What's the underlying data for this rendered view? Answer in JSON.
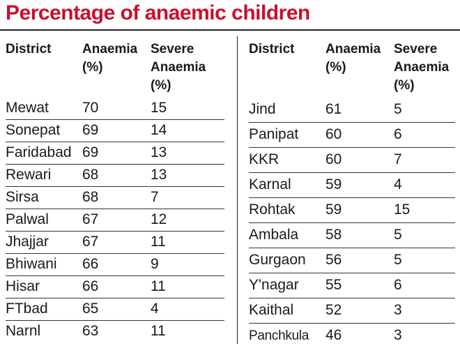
{
  "title": "Percentage of anaemic children",
  "headers": {
    "district": "District",
    "anaemia": "Anaemia\n(%)",
    "severe": "Severe\nAnaemia\n(%)"
  },
  "left_rows": [
    {
      "district": "Mewat",
      "anaemia": "70",
      "severe": "15"
    },
    {
      "district": "Sonepat",
      "anaemia": "69",
      "severe": "14"
    },
    {
      "district": "Faridabad",
      "anaemia": "69",
      "severe": "13"
    },
    {
      "district": "Rewari",
      "anaemia": "68",
      "severe": "13"
    },
    {
      "district": "Sirsa",
      "anaemia": "68",
      "severe": "7"
    },
    {
      "district": "Palwal",
      "anaemia": "67",
      "severe": "12"
    },
    {
      "district": "Jhajjar",
      "anaemia": "67",
      "severe": "11"
    },
    {
      "district": "Bhiwani",
      "anaemia": "66",
      "severe": "9"
    },
    {
      "district": "Hisar",
      "anaemia": "66",
      "severe": "11"
    },
    {
      "district": "FTbad",
      "anaemia": "65",
      "severe": "4"
    },
    {
      "district": "Narnl",
      "anaemia": "63",
      "severe": "11"
    }
  ],
  "right_rows": [
    {
      "district": "Jind",
      "anaemia": "61",
      "severe": "5"
    },
    {
      "district": "Panipat",
      "anaemia": "60",
      "severe": "6"
    },
    {
      "district": "KKR",
      "anaemia": "60",
      "severe": "7"
    },
    {
      "district": "Karnal",
      "anaemia": "59",
      "severe": "4"
    },
    {
      "district": "Rohtak",
      "anaemia": "59",
      "severe": "15"
    },
    {
      "district": "Ambala",
      "anaemia": "58",
      "severe": "5"
    },
    {
      "district": "Gurgaon",
      "anaemia": "56",
      "severe": "5"
    },
    {
      "district": "Y'nagar",
      "anaemia": "55",
      "severe": "6"
    },
    {
      "district": "Kaithal",
      "anaemia": "52",
      "severe": "3"
    },
    {
      "district": "Panchkula",
      "anaemia": "46",
      "severe": "3"
    }
  ],
  "colors": {
    "title": "#c8102e",
    "rule": "#222222"
  }
}
